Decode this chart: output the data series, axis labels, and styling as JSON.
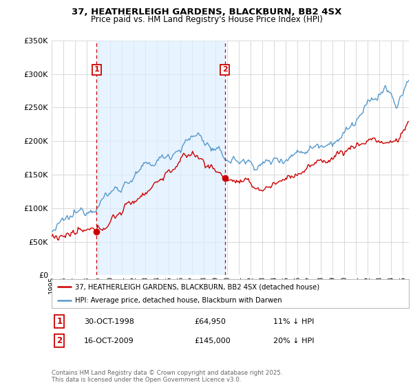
{
  "title_line1": "37, HEATHERLEIGH GARDENS, BLACKBURN, BB2 4SX",
  "title_line2": "Price paid vs. HM Land Registry's House Price Index (HPI)",
  "legend_label_red": "37, HEATHERLEIGH GARDENS, BLACKBURN, BB2 4SX (detached house)",
  "legend_label_blue": "HPI: Average price, detached house, Blackburn with Darwen",
  "annotation1_date": "30-OCT-1998",
  "annotation1_price": "£64,950",
  "annotation1_hpi": "11% ↓ HPI",
  "annotation2_date": "16-OCT-2009",
  "annotation2_price": "£145,000",
  "annotation2_hpi": "20% ↓ HPI",
  "footnote": "Contains HM Land Registry data © Crown copyright and database right 2025.\nThis data is licensed under the Open Government Licence v3.0.",
  "sale1_year": 1998.83,
  "sale1_price": 64950,
  "sale2_year": 2009.79,
  "sale2_price": 145000,
  "ylim_min": 0,
  "ylim_max": 350000,
  "xlim_min": 1995,
  "xlim_max": 2025.5,
  "background_color": "#ffffff",
  "plot_bg_color": "#ffffff",
  "shade_color": "#ddeeff",
  "grid_color": "#d8d8d8",
  "red_line_color": "#cc0000",
  "blue_line_color": "#5599cc",
  "vline_color": "#cc0000",
  "annotation_box_color": "#cc0000"
}
